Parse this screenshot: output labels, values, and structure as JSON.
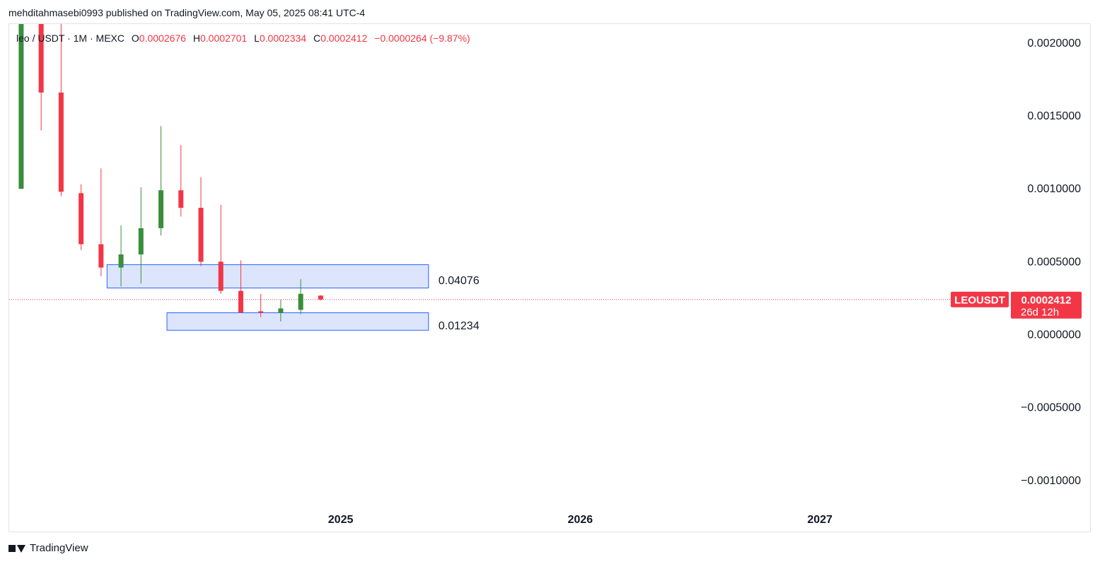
{
  "header": {
    "published_line": "mehditahmasebi0993 published on TradingView.com, May 05, 2025 08:41 UTC-4"
  },
  "legend": {
    "symbol_line": "leo / USDT · 1M · MEXC",
    "open_label": "O",
    "open_value": "0.0002676",
    "high_label": "H",
    "high_value": "0.0002701",
    "low_label": "L",
    "low_value": "0.0002334",
    "close_label": "C",
    "close_value": "0.0002412",
    "change": "−0.0000264 (−9.87%)"
  },
  "price_tag": {
    "symbol": "LEOUSDT",
    "price": "0.0002412",
    "countdown": "26d 12h",
    "color": "#f23645"
  },
  "footer": {
    "brand": "TradingView"
  },
  "colors": {
    "up": "#388e3c",
    "down": "#f23645",
    "zone_fill": "#d6e1fb",
    "zone_stroke": "#2962ff"
  },
  "chart_data": {
    "type": "candlestick",
    "y_ticks": [
      "0.0020000",
      "0.0015000",
      "0.0010000",
      "0.0005000",
      "0.0000000",
      "−0.0005000",
      "−0.0010000"
    ],
    "y_tick_values": [
      0.002,
      0.0015,
      0.001,
      0.0005,
      0.0,
      -0.0005,
      -0.001
    ],
    "x_ticks": [
      "2025",
      "2026",
      "2027"
    ],
    "x_tick_months": [
      12,
      24,
      36
    ],
    "ylim": [
      -0.00135,
      0.00213
    ],
    "xlim": [
      -4.6,
      45.6
    ],
    "last_price": 0.0002412,
    "candles": [
      {
        "m": -4,
        "o": 0.001,
        "h": 0.0022,
        "l": 0.001,
        "c": 0.0022
      },
      {
        "m": -3,
        "o": 0.0022,
        "h": 0.0023,
        "l": 0.0014,
        "c": 0.00166
      },
      {
        "m": -2,
        "o": 0.00166,
        "h": 0.00216,
        "l": 0.00095,
        "c": 0.00098
      },
      {
        "m": -1,
        "o": 0.00097,
        "h": 0.00103,
        "l": 0.00058,
        "c": 0.00062
      },
      {
        "m": 0,
        "o": 0.00062,
        "h": 0.00114,
        "l": 0.0004,
        "c": 0.00046
      },
      {
        "m": 1,
        "o": 0.00046,
        "h": 0.00075,
        "l": 0.00033,
        "c": 0.00055
      },
      {
        "m": 2,
        "o": 0.00055,
        "h": 0.00101,
        "l": 0.00035,
        "c": 0.00073
      },
      {
        "m": 3,
        "o": 0.00073,
        "h": 0.00143,
        "l": 0.00068,
        "c": 0.00099
      },
      {
        "m": 4,
        "o": 0.00099,
        "h": 0.0013,
        "l": 0.00081,
        "c": 0.00087
      },
      {
        "m": 5,
        "o": 0.00087,
        "h": 0.00108,
        "l": 0.00047,
        "c": 0.0005
      },
      {
        "m": 6,
        "o": 0.0005,
        "h": 0.00089,
        "l": 0.00028,
        "c": 0.0003
      },
      {
        "m": 7,
        "o": 0.0003,
        "h": 0.00051,
        "l": 0.00015,
        "c": 0.00015
      },
      {
        "m": 8,
        "o": 0.00016,
        "h": 0.00028,
        "l": 0.00012,
        "c": 0.00015
      },
      {
        "m": 9,
        "o": 0.00015,
        "h": 0.00024,
        "l": 9e-05,
        "c": 0.00018
      },
      {
        "m": 10,
        "o": 0.00017,
        "h": 0.00038,
        "l": 0.00014,
        "c": 0.00028
      },
      {
        "m": 11,
        "o": 0.0002676,
        "h": 0.0002701,
        "l": 0.0002334,
        "c": 0.0002412
      }
    ],
    "zones": [
      {
        "label": "0.04076",
        "m_start": 0.3,
        "m_end": 16.4,
        "top": 0.00048,
        "bottom": 0.00032
      },
      {
        "label": "0.01234",
        "m_start": 3.3,
        "m_end": 16.4,
        "top": 0.00015,
        "bottom": 3e-05
      }
    ]
  }
}
